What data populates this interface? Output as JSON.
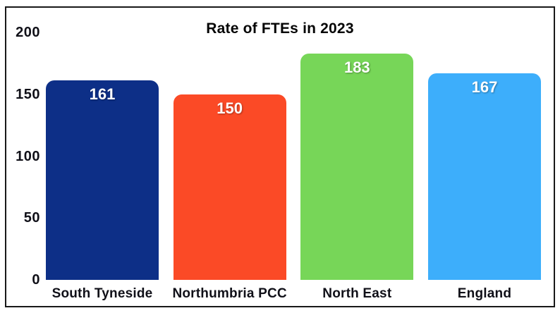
{
  "frame": {
    "border_color": "#181818",
    "background": "#ffffff"
  },
  "chart_data": {
    "type": "bar",
    "title": "Rate of FTEs in 2023",
    "categories": [
      "South Tyneside",
      "Northumbria PCC",
      "North East",
      "England"
    ],
    "values": [
      161,
      150,
      183,
      167
    ],
    "bar_colors": [
      "#0d2f87",
      "#fb4a26",
      "#77d658",
      "#3daefb"
    ],
    "value_label_color": "#ffffff",
    "xlabel": "",
    "ylabel": "",
    "ylim": [
      0,
      200
    ],
    "yticks": [
      0,
      50,
      100,
      150,
      200
    ],
    "grid": false,
    "legend": false,
    "bar_corner_radius_px": 12
  }
}
